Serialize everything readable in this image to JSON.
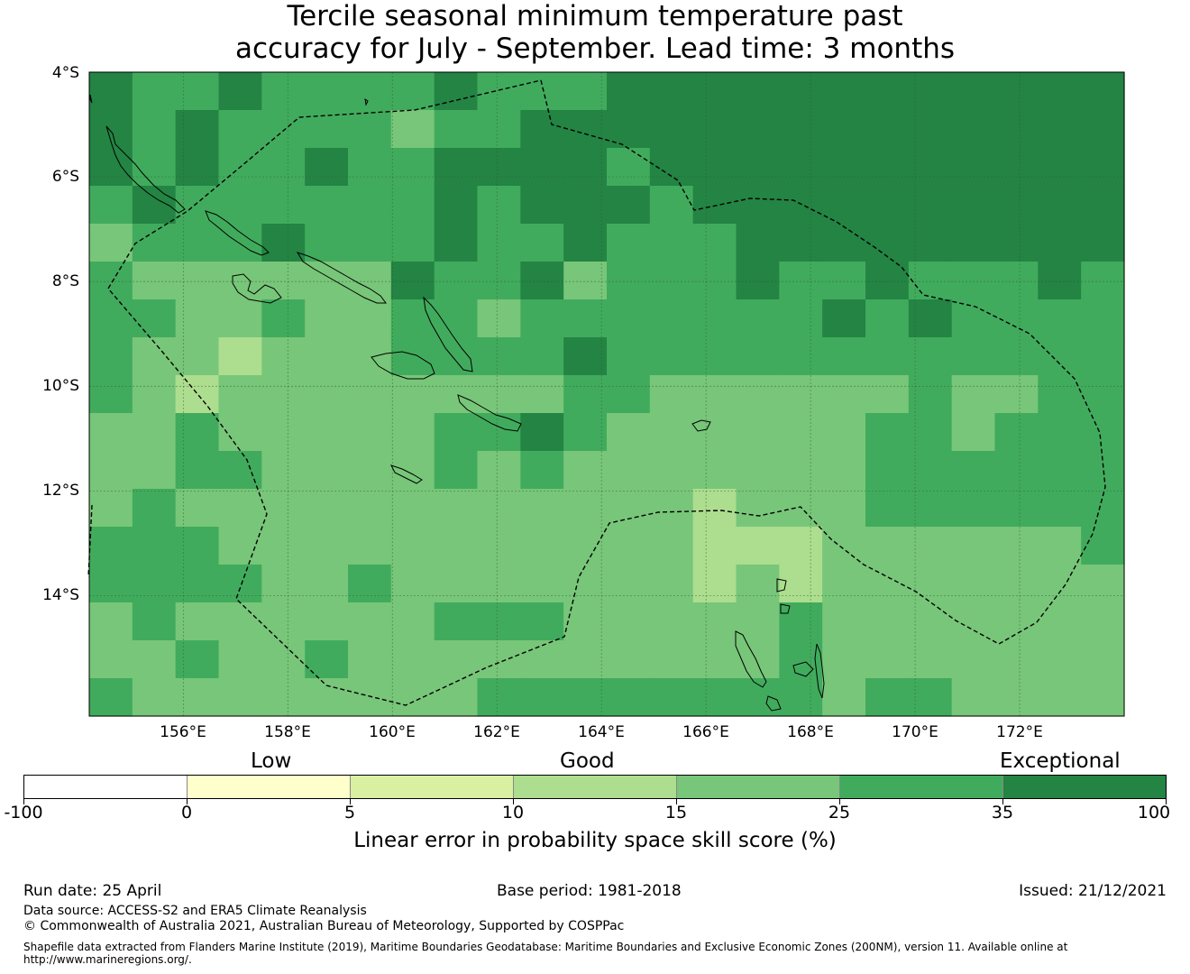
{
  "title": {
    "line1": "Tercile seasonal minimum temperature past",
    "line2": "accuracy for July - September. Lead time: 3 months"
  },
  "map": {
    "lon_range": [
      154.2,
      174.0
    ],
    "lat_range": [
      -16.3,
      -4.0
    ],
    "cell_size_deg": 0.83,
    "grid": [
      [
        5,
        4,
        4,
        5,
        4,
        4,
        4,
        4,
        5,
        4,
        4,
        4,
        5,
        5,
        5,
        5,
        5,
        5,
        5,
        5,
        5,
        5,
        5,
        5
      ],
      [
        5,
        4,
        5,
        4,
        4,
        4,
        4,
        3,
        4,
        4,
        5,
        5,
        5,
        5,
        5,
        5,
        5,
        5,
        5,
        5,
        5,
        5,
        5,
        5
      ],
      [
        5,
        4,
        5,
        4,
        4,
        5,
        4,
        4,
        5,
        5,
        5,
        5,
        4,
        5,
        5,
        5,
        5,
        5,
        5,
        5,
        5,
        5,
        5,
        5
      ],
      [
        4,
        5,
        4,
        4,
        4,
        4,
        4,
        4,
        5,
        4,
        5,
        5,
        5,
        4,
        5,
        5,
        5,
        5,
        5,
        5,
        5,
        5,
        5,
        5
      ],
      [
        3,
        4,
        4,
        4,
        5,
        4,
        4,
        4,
        5,
        4,
        4,
        5,
        4,
        4,
        4,
        5,
        5,
        5,
        5,
        5,
        5,
        5,
        5,
        5
      ],
      [
        4,
        3,
        3,
        3,
        3,
        3,
        3,
        5,
        4,
        4,
        5,
        3,
        4,
        4,
        4,
        5,
        4,
        4,
        5,
        4,
        4,
        4,
        5,
        4
      ],
      [
        4,
        4,
        3,
        3,
        4,
        3,
        3,
        4,
        4,
        3,
        4,
        4,
        4,
        4,
        4,
        4,
        4,
        5,
        4,
        5,
        4,
        4,
        4,
        4
      ],
      [
        4,
        3,
        3,
        2,
        3,
        3,
        3,
        4,
        4,
        4,
        4,
        5,
        4,
        4,
        4,
        4,
        4,
        4,
        4,
        4,
        4,
        4,
        4,
        4
      ],
      [
        4,
        3,
        2,
        3,
        3,
        3,
        3,
        3,
        3,
        3,
        3,
        4,
        4,
        3,
        3,
        3,
        3,
        3,
        3,
        4,
        3,
        3,
        4,
        4
      ],
      [
        3,
        3,
        4,
        3,
        3,
        3,
        3,
        3,
        4,
        4,
        5,
        4,
        3,
        3,
        3,
        3,
        3,
        3,
        4,
        4,
        3,
        4,
        4,
        4
      ],
      [
        3,
        3,
        4,
        4,
        3,
        3,
        3,
        3,
        4,
        3,
        4,
        3,
        3,
        3,
        3,
        3,
        3,
        3,
        4,
        4,
        4,
        4,
        4,
        4
      ],
      [
        3,
        4,
        3,
        3,
        3,
        3,
        3,
        3,
        3,
        3,
        3,
        3,
        3,
        3,
        2,
        3,
        3,
        3,
        4,
        4,
        4,
        4,
        4,
        4
      ],
      [
        4,
        4,
        4,
        3,
        3,
        3,
        3,
        3,
        3,
        3,
        3,
        3,
        3,
        3,
        2,
        2,
        2,
        3,
        3,
        3,
        3,
        3,
        3,
        4
      ],
      [
        4,
        4,
        4,
        4,
        3,
        3,
        4,
        3,
        3,
        3,
        3,
        3,
        3,
        3,
        2,
        3,
        2,
        3,
        3,
        3,
        3,
        3,
        3,
        3
      ],
      [
        3,
        4,
        3,
        3,
        3,
        3,
        3,
        3,
        4,
        4,
        4,
        3,
        3,
        3,
        3,
        3,
        4,
        3,
        3,
        3,
        3,
        3,
        3,
        3
      ],
      [
        3,
        3,
        4,
        3,
        3,
        4,
        3,
        3,
        3,
        3,
        3,
        3,
        3,
        3,
        3,
        3,
        4,
        3,
        3,
        3,
        3,
        3,
        3,
        3
      ],
      [
        4,
        3,
        3,
        3,
        3,
        3,
        3,
        3,
        3,
        4,
        4,
        4,
        4,
        4,
        4,
        4,
        4,
        3,
        4,
        4,
        3,
        3,
        3,
        3
      ]
    ],
    "lat_ticks": [
      "4°S",
      "6°S",
      "8°S",
      "10°S",
      "12°S",
      "14°S"
    ],
    "lat_tick_values": [
      -4,
      -6,
      -8,
      -10,
      -12,
      -14
    ],
    "lon_ticks": [
      "156°E",
      "158°E",
      "160°E",
      "162°E",
      "164°E",
      "166°E",
      "168°E",
      "170°E",
      "172°E"
    ],
    "lon_tick_values": [
      156,
      158,
      160,
      162,
      164,
      166,
      168,
      170,
      172
    ]
  },
  "legend": {
    "categories": [
      "Low",
      "Good",
      "Exceptional"
    ],
    "bins": [
      {
        "from": -100,
        "to": 0,
        "color": "#ffffff"
      },
      {
        "from": 0,
        "to": 5,
        "color": "#ffffcc"
      },
      {
        "from": 5,
        "to": 10,
        "color": "#d9f0a3"
      },
      {
        "from": 10,
        "to": 15,
        "color": "#addd8e"
      },
      {
        "from": 15,
        "to": 25,
        "color": "#78c679"
      },
      {
        "from": 25,
        "to": 35,
        "color": "#41ab5d"
      },
      {
        "from": 35,
        "to": 100,
        "color": "#238443"
      }
    ],
    "tick_labels": [
      "-100",
      "0",
      "5",
      "10",
      "15",
      "25",
      "35",
      "100"
    ],
    "caption": "Linear error in probability space skill score (%)"
  },
  "footer": {
    "run_date": "Run date: 25 April",
    "base_period": "Base period: 1981-2018",
    "issued": "Issued: 21/12/2021",
    "data_source": "Data source: ACCESS-S2 and ERA5 Climate Reanalysis",
    "copyright": "© Commonwealth of Australia 2021, Australian Bureau of Meteorology, Supported by COSPPac",
    "shapefile": "Shapefile data extracted from Flanders Marine Institute (2019), Maritime Boundaries Geodatabase: Maritime Boundaries and Exclusive Economic Zones (200NM), version 11. Available online at http://www.marineregions.org/."
  }
}
